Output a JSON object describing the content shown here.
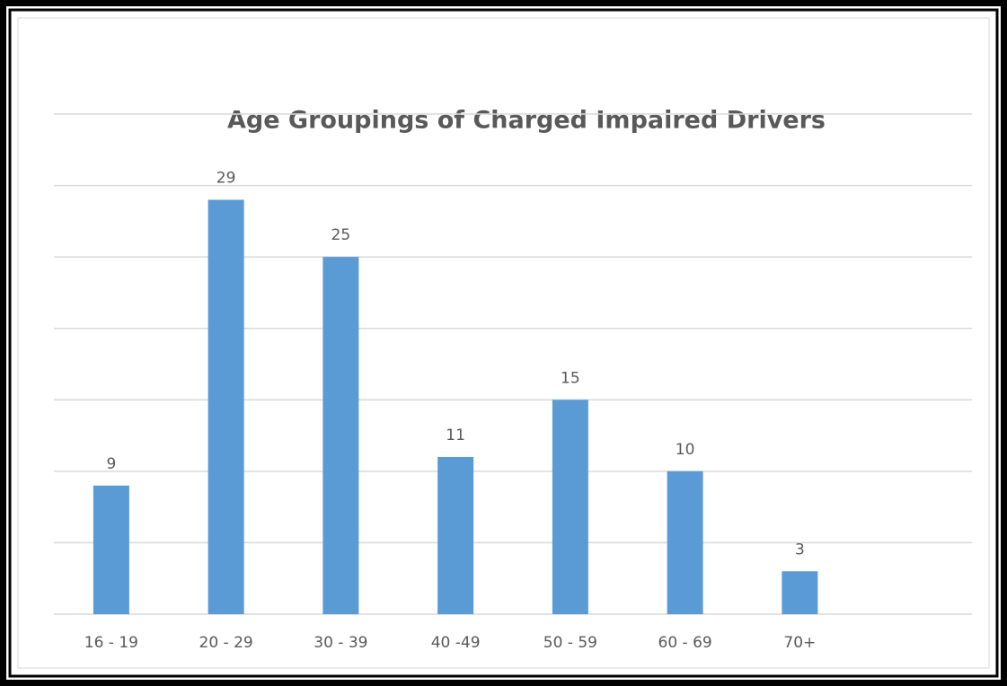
{
  "chart_data": {
    "type": "bar",
    "title": "Age Groupings of Charged Impaired Drivers",
    "categories": [
      "16 - 19",
      "20 - 29",
      "30 - 39",
      "40 -49",
      "50 - 59",
      "60 - 69",
      "70+"
    ],
    "values": [
      9,
      29,
      25,
      11,
      15,
      10,
      3
    ],
    "color": "#5b9bd5",
    "ylim": [
      0,
      35
    ],
    "yticks": [
      0,
      5,
      10,
      15,
      20,
      25,
      30,
      35
    ],
    "grid": true
  }
}
